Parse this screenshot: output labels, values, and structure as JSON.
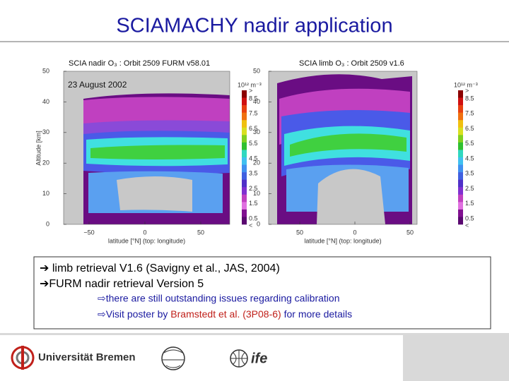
{
  "title": "SCIAMACHY nadir application",
  "plots": [
    {
      "title": "SCIA nadir O₃ : Orbit 2509  FURM v58.01",
      "date": "23 August 2002",
      "y_label": "Altitude [km]",
      "x_label": "latitude [°N] (top: longitude)",
      "yticks": [
        "50",
        "40",
        "30",
        "20",
        "10",
        "0"
      ],
      "xticks": [
        "−50",
        "0",
        "50"
      ],
      "colorbar_unit": "10¹² m⁻³",
      "colorbar_labels": [
        ">",
        "8.5",
        "7.5",
        "6.5",
        "5.5",
        "4.5",
        "3.5",
        "2.5",
        "1.5",
        "0.5",
        "<"
      ]
    },
    {
      "title": "SCIA limb O₃ : Orbit 2509  v1.6",
      "x_label": "latitude [°N] (top: longitude)",
      "yticks": [
        "50",
        "40",
        "30",
        "20",
        "10",
        "0"
      ],
      "xticks": [
        "50",
        "0",
        "50"
      ],
      "colorbar_unit": "10¹² m⁻³",
      "colorbar_labels": [
        ">",
        "8.5",
        "7.5",
        "6.5",
        "5.5",
        "4.5",
        "3.5",
        "2.5",
        "1.5",
        "0.5",
        "<"
      ]
    }
  ],
  "bullets": [
    "➔ limb retrieval V1.6 (Savigny et al., JAS, 2004)",
    "➔FURM nadir retrieval Version 5",
    "⇨there are still outstanding issues regarding calibration"
  ],
  "bullet_last": [
    "⇨Visit poster by ",
    "Bramstedt et al. (3P08-6)",
    " for more details"
  ],
  "footer": {
    "university": "Universität Bremen",
    "institute": "ife"
  }
}
